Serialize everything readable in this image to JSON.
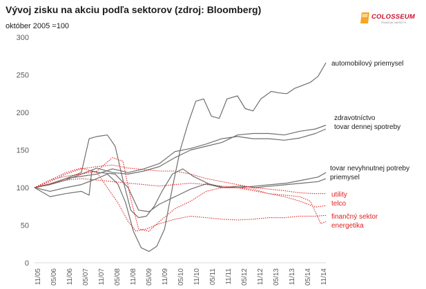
{
  "header": {
    "title": "Vývoj zisku na akciu podľa sektorov (zdroj: Bloomberg)",
    "subtitle": "október 2005 =100"
  },
  "logo": {
    "name": "COLOSSEUM",
    "tagline": "FINANCIAL MARKETS"
  },
  "colors": {
    "gray_series": "#6e6e6e",
    "red_series": "#e02020",
    "axis": "#d9d9d9"
  },
  "chart_data": {
    "type": "line",
    "ylim": [
      0,
      300
    ],
    "yticks": [
      "0",
      "50",
      "100",
      "150",
      "200",
      "250",
      "300"
    ],
    "xlabel": "",
    "ylabel": "",
    "grid": false,
    "x_tick_labels": [
      "11/05",
      "05/06",
      "11/06",
      "05/07",
      "11/07",
      "05/08",
      "11/08",
      "05/09",
      "11/09",
      "05/10",
      "11/10",
      "05/11",
      "11/11",
      "05/12",
      "11/12",
      "05/13",
      "11/13",
      "05/14",
      "11/14"
    ],
    "x_start": "2005-11",
    "x_end": "2015-03",
    "series": [
      {
        "name": "automobilový priemysel",
        "color": "gray",
        "style": "solid",
        "points": [
          [
            "2005-11",
            100
          ],
          [
            "2006-05",
            95
          ],
          [
            "2006-11",
            100
          ],
          [
            "2007-05",
            104
          ],
          [
            "2007-11",
            112
          ],
          [
            "2008-03",
            118
          ],
          [
            "2008-07",
            105
          ],
          [
            "2008-10",
            80
          ],
          [
            "2009-01",
            42
          ],
          [
            "2009-04",
            20
          ],
          [
            "2009-07",
            15
          ],
          [
            "2009-10",
            22
          ],
          [
            "2010-01",
            45
          ],
          [
            "2010-04",
            100
          ],
          [
            "2010-07",
            150
          ],
          [
            "2010-10",
            185
          ],
          [
            "2011-01",
            215
          ],
          [
            "2011-04",
            218
          ],
          [
            "2011-07",
            195
          ],
          [
            "2011-10",
            192
          ],
          [
            "2012-01",
            218
          ],
          [
            "2012-05",
            222
          ],
          [
            "2012-08",
            205
          ],
          [
            "2012-11",
            202
          ],
          [
            "2013-02",
            218
          ],
          [
            "2013-06",
            228
          ],
          [
            "2013-09",
            226
          ],
          [
            "2013-12",
            225
          ],
          [
            "2014-03",
            232
          ],
          [
            "2014-06",
            236
          ],
          [
            "2014-09",
            240
          ],
          [
            "2014-12",
            248
          ],
          [
            "2015-03",
            266
          ]
        ]
      },
      {
        "name": "zdravotníctvo",
        "color": "gray",
        "style": "solid",
        "points": [
          [
            "2005-11",
            100
          ],
          [
            "2006-05",
            104
          ],
          [
            "2006-11",
            110
          ],
          [
            "2007-05",
            118
          ],
          [
            "2007-11",
            126
          ],
          [
            "2008-05",
            120
          ],
          [
            "2008-11",
            118
          ],
          [
            "2009-05",
            122
          ],
          [
            "2009-11",
            128
          ],
          [
            "2010-05",
            140
          ],
          [
            "2010-11",
            150
          ],
          [
            "2011-05",
            155
          ],
          [
            "2011-11",
            160
          ],
          [
            "2012-05",
            170
          ],
          [
            "2012-11",
            172
          ],
          [
            "2013-05",
            172
          ],
          [
            "2013-11",
            170
          ],
          [
            "2014-05",
            175
          ],
          [
            "2014-11",
            178
          ],
          [
            "2015-03",
            183
          ]
        ]
      },
      {
        "name": "tovar dennej spotreby",
        "color": "gray",
        "style": "solid",
        "points": [
          [
            "2005-11",
            100
          ],
          [
            "2006-05",
            105
          ],
          [
            "2006-11",
            112
          ],
          [
            "2007-05",
            115
          ],
          [
            "2007-11",
            118
          ],
          [
            "2008-05",
            125
          ],
          [
            "2008-11",
            120
          ],
          [
            "2009-05",
            125
          ],
          [
            "2009-11",
            132
          ],
          [
            "2010-05",
            148
          ],
          [
            "2010-11",
            152
          ],
          [
            "2011-05",
            158
          ],
          [
            "2011-11",
            165
          ],
          [
            "2012-05",
            168
          ],
          [
            "2012-11",
            165
          ],
          [
            "2013-05",
            165
          ],
          [
            "2013-11",
            163
          ],
          [
            "2014-05",
            166
          ],
          [
            "2014-11",
            172
          ],
          [
            "2015-03",
            178
          ]
        ]
      },
      {
        "name": "tovar nevyhnutnej potreby",
        "color": "gray",
        "style": "solid",
        "points": [
          [
            "2005-11",
            100
          ],
          [
            "2006-05",
            105
          ],
          [
            "2006-11",
            112
          ],
          [
            "2007-05",
            120
          ],
          [
            "2007-08",
            165
          ],
          [
            "2007-11",
            168
          ],
          [
            "2008-03",
            170
          ],
          [
            "2008-06",
            155
          ],
          [
            "2008-09",
            110
          ],
          [
            "2008-12",
            70
          ],
          [
            "2009-03",
            60
          ],
          [
            "2009-06",
            62
          ],
          [
            "2009-09",
            75
          ],
          [
            "2009-12",
            95
          ],
          [
            "2010-04",
            118
          ],
          [
            "2010-08",
            125
          ],
          [
            "2010-12",
            115
          ],
          [
            "2011-06",
            105
          ],
          [
            "2011-12",
            100
          ],
          [
            "2012-06",
            100
          ],
          [
            "2012-12",
            102
          ],
          [
            "2013-06",
            104
          ],
          [
            "2013-12",
            106
          ],
          [
            "2014-06",
            110
          ],
          [
            "2014-12",
            114
          ],
          [
            "2015-03",
            120
          ]
        ]
      },
      {
        "name": "priemysel",
        "color": "gray",
        "style": "solid",
        "points": [
          [
            "2005-11",
            100
          ],
          [
            "2006-05",
            88
          ],
          [
            "2006-11",
            92
          ],
          [
            "2007-05",
            95
          ],
          [
            "2007-08",
            90
          ],
          [
            "2007-09",
            122
          ],
          [
            "2007-12",
            120
          ],
          [
            "2008-06",
            118
          ],
          [
            "2008-11",
            100
          ],
          [
            "2009-03",
            70
          ],
          [
            "2009-07",
            68
          ],
          [
            "2009-11",
            78
          ],
          [
            "2010-05",
            88
          ],
          [
            "2010-11",
            98
          ],
          [
            "2011-05",
            105
          ],
          [
            "2011-11",
            100
          ],
          [
            "2012-06",
            102
          ],
          [
            "2012-12",
            100
          ],
          [
            "2013-06",
            102
          ],
          [
            "2013-12",
            104
          ],
          [
            "2014-06",
            106
          ],
          [
            "2014-12",
            108
          ],
          [
            "2015-03",
            112
          ]
        ]
      },
      {
        "name": "utility",
        "color": "red",
        "style": "dotted",
        "points": [
          [
            "2005-11",
            100
          ],
          [
            "2006-05",
            108
          ],
          [
            "2006-11",
            118
          ],
          [
            "2007-05",
            125
          ],
          [
            "2007-11",
            128
          ],
          [
            "2008-05",
            130
          ],
          [
            "2008-11",
            126
          ],
          [
            "2009-05",
            124
          ],
          [
            "2009-11",
            122
          ],
          [
            "2010-05",
            122
          ],
          [
            "2010-11",
            118
          ],
          [
            "2011-05",
            112
          ],
          [
            "2011-11",
            108
          ],
          [
            "2012-05",
            104
          ],
          [
            "2012-11",
            100
          ],
          [
            "2013-05",
            98
          ],
          [
            "2013-11",
            96
          ],
          [
            "2014-05",
            93
          ],
          [
            "2014-11",
            92
          ],
          [
            "2015-03",
            92
          ]
        ]
      },
      {
        "name": "telco",
        "color": "red",
        "style": "dotted",
        "points": [
          [
            "2005-11",
            100
          ],
          [
            "2006-05",
            105
          ],
          [
            "2006-11",
            110
          ],
          [
            "2007-05",
            112
          ],
          [
            "2007-11",
            110
          ],
          [
            "2008-05",
            108
          ],
          [
            "2008-11",
            106
          ],
          [
            "2009-05",
            104
          ],
          [
            "2009-11",
            102
          ],
          [
            "2010-05",
            104
          ],
          [
            "2010-11",
            106
          ],
          [
            "2011-05",
            104
          ],
          [
            "2011-11",
            102
          ],
          [
            "2012-05",
            100
          ],
          [
            "2012-11",
            96
          ],
          [
            "2013-05",
            92
          ],
          [
            "2013-11",
            88
          ],
          [
            "2014-05",
            82
          ],
          [
            "2014-11",
            74
          ],
          [
            "2015-03",
            76
          ]
        ]
      },
      {
        "name": "finančný sektor",
        "color": "red",
        "style": "dotted",
        "points": [
          [
            "2005-11",
            100
          ],
          [
            "2006-05",
            110
          ],
          [
            "2006-11",
            120
          ],
          [
            "2007-05",
            126
          ],
          [
            "2007-11",
            120
          ],
          [
            "2008-03",
            100
          ],
          [
            "2008-07",
            80
          ],
          [
            "2008-11",
            55
          ],
          [
            "2009-02",
            42
          ],
          [
            "2009-06",
            45
          ],
          [
            "2009-11",
            52
          ],
          [
            "2010-05",
            58
          ],
          [
            "2010-11",
            62
          ],
          [
            "2011-05",
            60
          ],
          [
            "2011-11",
            58
          ],
          [
            "2012-05",
            57
          ],
          [
            "2012-11",
            58
          ],
          [
            "2013-05",
            60
          ],
          [
            "2013-11",
            60
          ],
          [
            "2014-05",
            62
          ],
          [
            "2014-11",
            62
          ],
          [
            "2015-03",
            63
          ]
        ]
      },
      {
        "name": "energetika",
        "color": "red",
        "style": "dotted",
        "points": [
          [
            "2005-11",
            100
          ],
          [
            "2006-05",
            110
          ],
          [
            "2006-11",
            115
          ],
          [
            "2007-05",
            118
          ],
          [
            "2007-11",
            122
          ],
          [
            "2008-05",
            140
          ],
          [
            "2008-09",
            135
          ],
          [
            "2008-12",
            85
          ],
          [
            "2009-03",
            45
          ],
          [
            "2009-07",
            42
          ],
          [
            "2009-11",
            55
          ],
          [
            "2010-05",
            72
          ],
          [
            "2010-11",
            82
          ],
          [
            "2011-05",
            95
          ],
          [
            "2011-11",
            100
          ],
          [
            "2012-05",
            100
          ],
          [
            "2012-11",
            98
          ],
          [
            "2013-05",
            92
          ],
          [
            "2013-11",
            90
          ],
          [
            "2014-05",
            88
          ],
          [
            "2014-09",
            82
          ],
          [
            "2014-12",
            60
          ],
          [
            "2015-01",
            52
          ],
          [
            "2015-03",
            55
          ]
        ]
      }
    ]
  },
  "legend": [
    {
      "text": "automobilový priemysel",
      "color": "gray"
    },
    {
      "text": "zdravotníctvo",
      "color": "gray"
    },
    {
      "text": "tovar dennej spotreby",
      "color": "gray"
    },
    {
      "text": "tovar nevyhnutnej potreby",
      "color": "gray"
    },
    {
      "text": "priemysel",
      "color": "gray"
    },
    {
      "text": "utility",
      "color": "red"
    },
    {
      "text": "telco",
      "color": "red"
    },
    {
      "text": "finančný sektor",
      "color": "red"
    },
    {
      "text": "energetika",
      "color": "red"
    }
  ]
}
